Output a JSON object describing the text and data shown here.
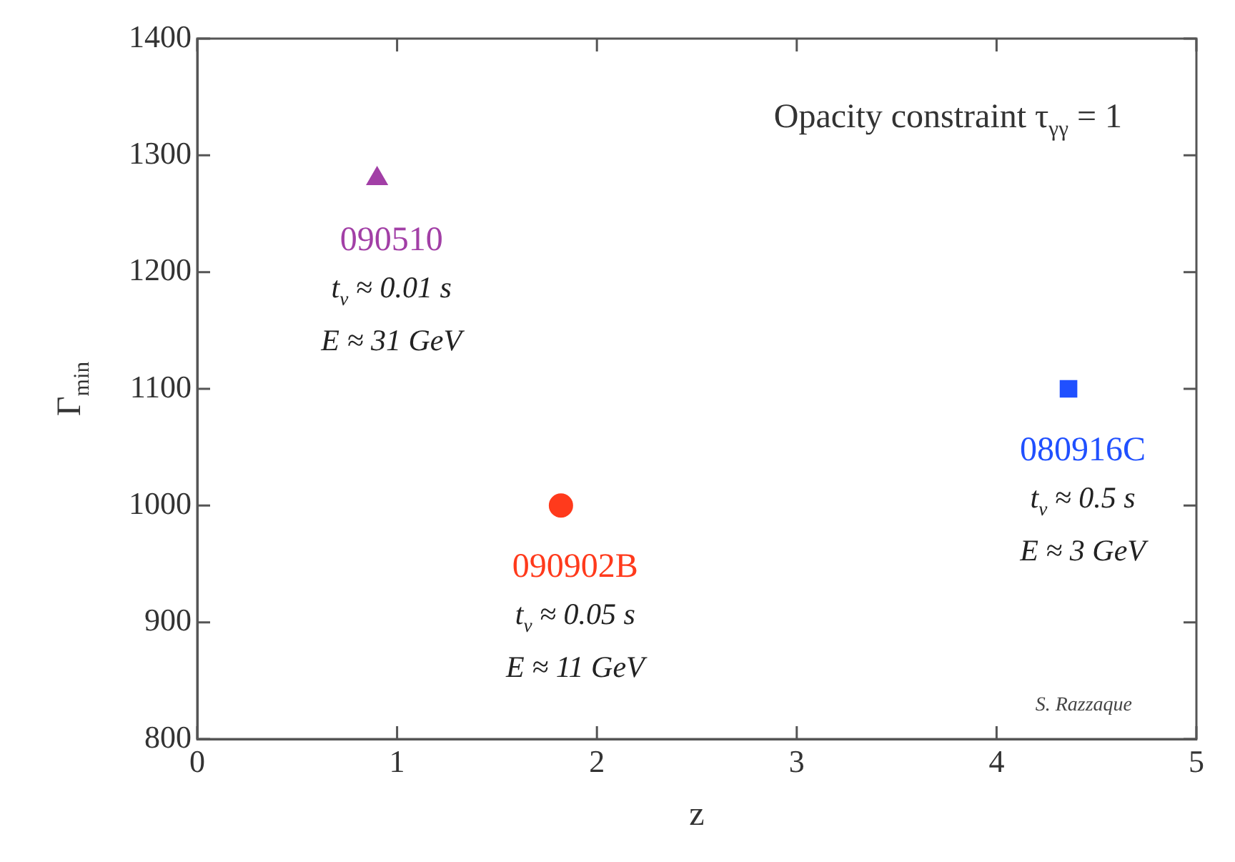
{
  "chart_data": {
    "type": "scatter",
    "xlabel": "z",
    "ylabel": "Γ$_{min}$",
    "xlim": [
      0,
      5
    ],
    "xticks": [
      0,
      1,
      2,
      3,
      4,
      5
    ],
    "ylim": [
      800,
      1400
    ],
    "yticks": [
      800,
      900,
      1000,
      1100,
      1200,
      1300,
      1400
    ],
    "grid": false,
    "legend": false,
    "series": [
      {
        "name": "090510",
        "color": "#a23fa6",
        "marker": "triangle",
        "x": [
          0.9
        ],
        "values": [
          1280
        ]
      },
      {
        "name": "090902B",
        "color": "#ff3a1c",
        "marker": "circle",
        "x": [
          1.82
        ],
        "values": [
          1000
        ]
      },
      {
        "name": "080916C",
        "color": "#2050ff",
        "marker": "square",
        "x": [
          4.36
        ],
        "values": [
          1100
        ]
      }
    ],
    "annotations": [
      "Opacity constraint τ$_{γγ}$ = 1",
      "t$_{v}$ ≈ 0.01 s",
      "E ≈ 31 GeV",
      "t$_{v}$ ≈ 0.05 s",
      "E ≈ 11 GeV",
      "t$_{v}$ ≈ 0.5 s",
      "E ≈ 3 GeV",
      "S. Razzaque"
    ]
  }
}
